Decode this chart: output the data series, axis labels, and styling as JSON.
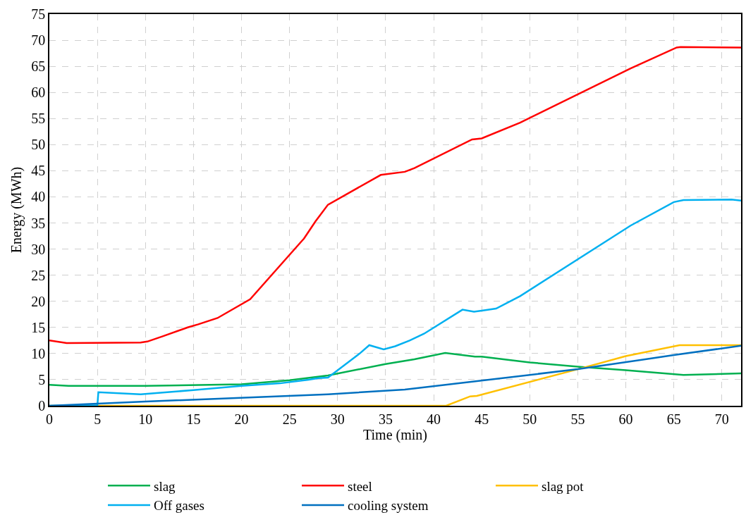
{
  "chart_data": {
    "type": "line",
    "xlabel": "Time (min)",
    "ylabel": "Energy (MWh)",
    "xlim": [
      0,
      72
    ],
    "xticks": [
      0,
      5,
      10,
      15,
      20,
      25,
      30,
      35,
      40,
      45,
      50,
      55,
      60,
      65,
      70
    ],
    "ylim": [
      0,
      75
    ],
    "yticks": [
      0,
      5,
      10,
      15,
      20,
      25,
      30,
      35,
      40,
      45,
      50,
      55,
      60,
      65,
      70,
      75
    ],
    "grid": true,
    "legend": "bottom",
    "marker": "none",
    "line_style": "solid",
    "series": [
      {
        "name": "slag",
        "color": "#00b050",
        "x": [
          0,
          2,
          10,
          20,
          25,
          29,
          35,
          38,
          41.2,
          44.3,
          45,
          50,
          55,
          60,
          66,
          72
        ],
        "values": [
          4,
          3.8,
          3.8,
          4.1,
          4.9,
          5.8,
          8,
          8.9,
          10.1,
          9.4,
          9.4,
          8.3,
          7.5,
          6.8,
          5.9,
          6.2
        ]
      },
      {
        "name": "steel",
        "color": "#ff0000",
        "x": [
          0,
          1.8,
          9.5,
          10.2,
          11.8,
          14.4,
          15.5,
          17.5,
          20.9,
          26.3,
          26.5,
          27.7,
          29,
          34.5,
          37,
          38,
          44,
          45,
          49,
          60.5,
          65.3,
          65.7,
          72
        ],
        "values": [
          12.5,
          12,
          12.1,
          12.3,
          13.3,
          15,
          15.6,
          16.8,
          20.4,
          31.6,
          32,
          35.3,
          38.5,
          44.2,
          44.8,
          45.5,
          51,
          51.2,
          54.2,
          64.6,
          68.6,
          68.7,
          68.6
        ]
      },
      {
        "name": "slag pot",
        "color": "#ffc000",
        "x": [
          0,
          41.3,
          43.8,
          44.5,
          55,
          60,
          65.6,
          72
        ],
        "values": [
          0,
          0,
          1.8,
          1.9,
          7,
          9.5,
          11.6,
          11.6
        ]
      },
      {
        "name": "Off gases",
        "color": "#00b0f0",
        "x": [
          0,
          5,
          5.1,
          9.5,
          15,
          20,
          24,
          27,
          28,
          29,
          32.3,
          33.3,
          34.8,
          36,
          37.5,
          39,
          43,
          44.2,
          45,
          46.5,
          49,
          60.5,
          65,
          66,
          71,
          72
        ],
        "values": [
          0,
          0.1,
          2.6,
          2.2,
          3,
          3.8,
          4.3,
          5,
          5.3,
          5.4,
          10,
          11.6,
          10.8,
          11.4,
          12.5,
          13.8,
          18.4,
          18,
          18.2,
          18.6,
          21,
          34.5,
          39,
          39.4,
          39.5,
          39.3
        ]
      },
      {
        "name": "cooling system",
        "color": "#0070c0",
        "x": [
          0,
          5,
          10,
          29,
          37,
          55,
          65,
          72
        ],
        "values": [
          0,
          0.4,
          0.8,
          2.2,
          3.1,
          7,
          9.7,
          11.5
        ]
      }
    ]
  }
}
